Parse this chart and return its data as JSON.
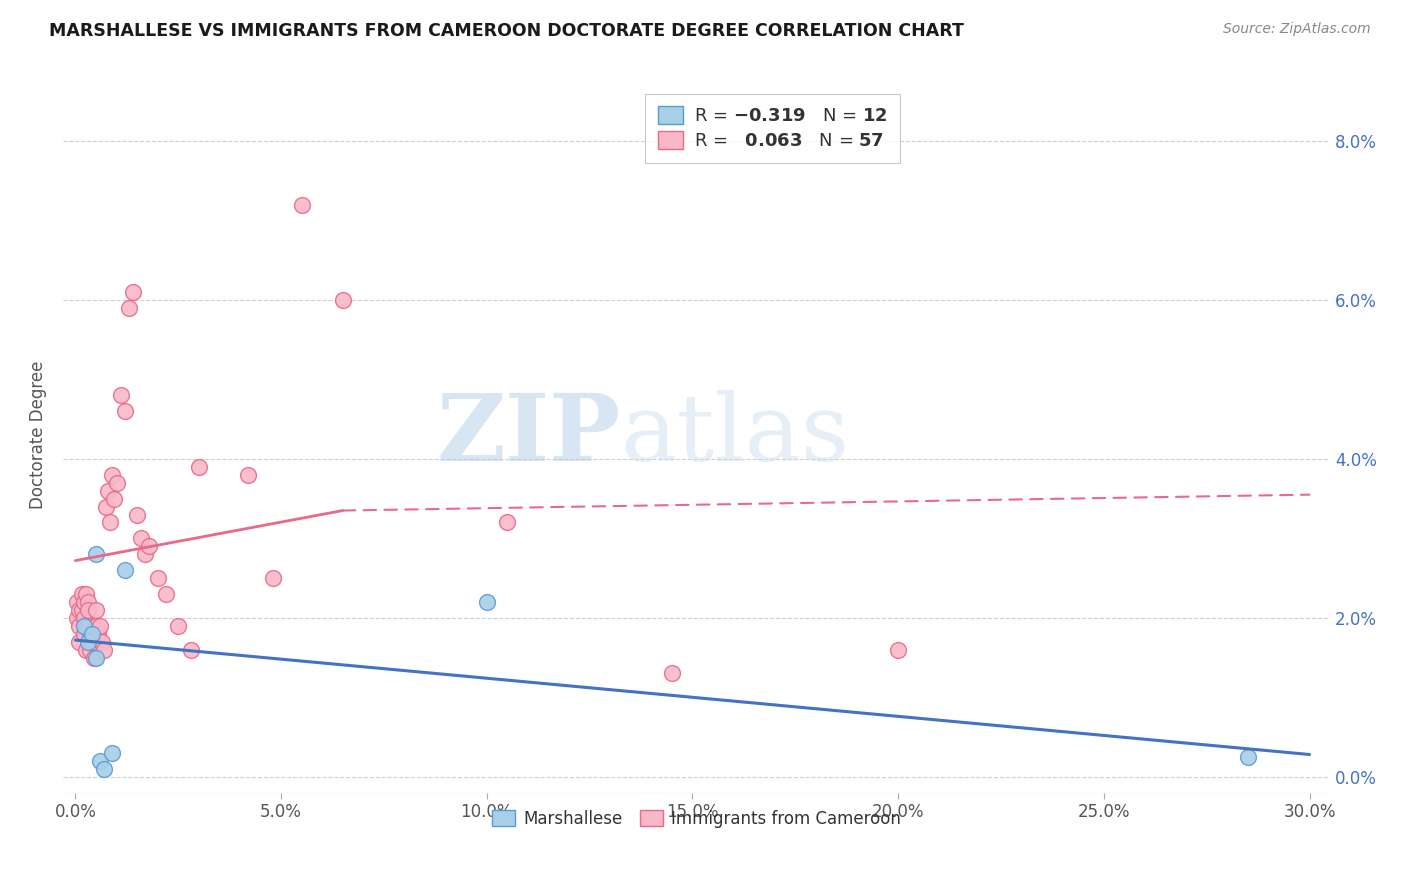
{
  "title": "MARSHALLESE VS IMMIGRANTS FROM CAMEROON DOCTORATE DEGREE CORRELATION CHART",
  "source": "Source: ZipAtlas.com",
  "xlabel_vals": [
    0,
    5,
    10,
    15,
    20,
    25,
    30
  ],
  "ylabel": "Doctorate Degree",
  "ylabel_vals": [
    0,
    2,
    4,
    6,
    8
  ],
  "xlim": [
    -0.3,
    30.5
  ],
  "ylim": [
    -0.2,
    8.8
  ],
  "legend_blue_label": "Marshallese",
  "legend_pink_label": "Immigrants from Cameroon",
  "blue_fill": "#a8cfe8",
  "pink_fill": "#f9b8c8",
  "blue_edge": "#5b9bd5",
  "pink_edge": "#e8698a",
  "blue_line": "#4472c4",
  "pink_line": "#e8698a",
  "watermark_zip": "ZIP",
  "watermark_atlas": "atlas",
  "blue_scatter_x": [
    0.2,
    0.3,
    0.4,
    0.5,
    0.5,
    0.6,
    0.7,
    0.9,
    1.2,
    10.0,
    28.5
  ],
  "blue_scatter_y": [
    1.9,
    1.7,
    1.8,
    2.8,
    1.5,
    0.2,
    0.1,
    0.3,
    2.6,
    2.2,
    0.25
  ],
  "pink_scatter_x": [
    0.05,
    0.05,
    0.1,
    0.1,
    0.1,
    0.15,
    0.15,
    0.2,
    0.2,
    0.2,
    0.25,
    0.25,
    0.3,
    0.3,
    0.3,
    0.35,
    0.35,
    0.4,
    0.45,
    0.5,
    0.5,
    0.55,
    0.6,
    0.65,
    0.7,
    0.75,
    0.8,
    0.85,
    0.9,
    0.95,
    1.0,
    1.1,
    1.2,
    1.3,
    1.4,
    1.5,
    1.6,
    1.7,
    1.8,
    2.0,
    2.2,
    2.5,
    2.8,
    3.0,
    4.2,
    4.8,
    5.5,
    6.5,
    10.5,
    14.5,
    20.0
  ],
  "pink_scatter_y": [
    2.2,
    2.0,
    2.1,
    1.9,
    1.7,
    2.3,
    2.1,
    2.2,
    2.0,
    1.8,
    2.3,
    1.6,
    2.2,
    2.1,
    1.9,
    1.8,
    1.6,
    1.7,
    1.5,
    2.1,
    1.9,
    1.8,
    1.9,
    1.7,
    1.6,
    3.4,
    3.6,
    3.2,
    3.8,
    3.5,
    3.7,
    4.8,
    4.6,
    5.9,
    6.1,
    3.3,
    3.0,
    2.8,
    2.9,
    2.5,
    2.3,
    1.9,
    1.6,
    3.9,
    3.8,
    2.5,
    7.2,
    6.0,
    3.2,
    1.3,
    1.6
  ],
  "blue_line_x0": 0,
  "blue_line_y0": 1.72,
  "blue_line_x1": 30,
  "blue_line_y1": 0.28,
  "pink_solid_x0": 0,
  "pink_solid_y0": 2.72,
  "pink_solid_x1": 6.5,
  "pink_solid_y1": 3.35,
  "pink_dash_x0": 6.5,
  "pink_dash_y0": 3.35,
  "pink_dash_x1": 30,
  "pink_dash_y1": 3.55
}
